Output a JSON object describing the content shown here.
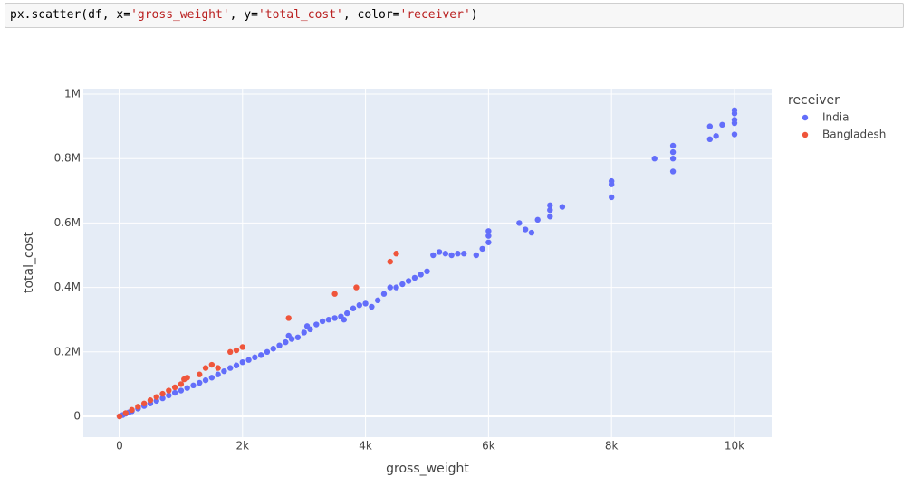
{
  "code": {
    "tokens": [
      "px.scatter(df, x=",
      "'gross_weight'",
      ", y=",
      "'total_cost'",
      ", color=",
      "'receiver'",
      ")"
    ]
  },
  "chart_data": {
    "type": "scatter",
    "x_label": "gross_weight",
    "y_label": "total_cost",
    "legend_title": "receiver",
    "xlim": [
      -589,
      10604
    ],
    "ylim": [
      -64600,
      1016900
    ],
    "xticks": [
      0,
      {
        "value": 2000,
        "label": "2k"
      },
      {
        "value": 4000,
        "label": "4k"
      },
      {
        "value": 6000,
        "label": "6k"
      },
      {
        "value": 8000,
        "label": "8k"
      },
      {
        "value": 10000,
        "label": "10k"
      }
    ],
    "yticks": [
      0,
      {
        "value": 200000,
        "label": "0.2M"
      },
      {
        "value": 400000,
        "label": "0.4M"
      },
      {
        "value": 600000,
        "label": "0.6M"
      },
      {
        "value": 800000,
        "label": "0.8M"
      },
      {
        "value": 1000000,
        "label": "1M"
      }
    ],
    "grid": true,
    "legend": "right",
    "series": [
      {
        "name": "India",
        "color": "#636efa",
        "x": [
          0,
          50,
          100,
          150,
          200,
          300,
          400,
          500,
          600,
          700,
          800,
          900,
          1000,
          1100,
          1200,
          1300,
          1400,
          1500,
          1600,
          1700,
          1800,
          1900,
          2000,
          2100,
          2200,
          2300,
          2400,
          2500,
          2600,
          2700,
          2800,
          2750,
          2900,
          3000,
          3100,
          3050,
          3200,
          3300,
          3400,
          3500,
          3600,
          3700,
          3650,
          3800,
          3900,
          4000,
          4100,
          4200,
          4300,
          4400,
          4500,
          4600,
          4700,
          4800,
          4900,
          5000,
          5100,
          5200,
          5300,
          5400,
          5500,
          5600,
          5800,
          5900,
          6000,
          6000,
          6000,
          6500,
          6600,
          6700,
          6800,
          7000,
          7000,
          7000,
          7200,
          8000,
          8000,
          8000,
          8700,
          9000,
          9000,
          9000,
          9000,
          9600,
          9600,
          9700,
          9800,
          10000,
          10000,
          10000,
          10000,
          10000
        ],
        "values": [
          0,
          4000,
          8000,
          12000,
          16000,
          24000,
          32000,
          40000,
          48000,
          56000,
          65000,
          73000,
          80000,
          88000,
          96000,
          104000,
          112000,
          120000,
          130000,
          140000,
          150000,
          158000,
          168000,
          175000,
          183000,
          190000,
          200000,
          210000,
          220000,
          230000,
          240000,
          250000,
          245000,
          260000,
          270000,
          280000,
          285000,
          295000,
          300000,
          305000,
          310000,
          320000,
          300000,
          335000,
          345000,
          350000,
          340000,
          360000,
          380000,
          400000,
          400000,
          410000,
          420000,
          430000,
          440000,
          450000,
          500000,
          510000,
          505000,
          500000,
          505000,
          505000,
          500000,
          520000,
          540000,
          560000,
          575000,
          600000,
          580000,
          570000,
          610000,
          620000,
          640000,
          655000,
          650000,
          680000,
          720000,
          730000,
          800000,
          760000,
          800000,
          820000,
          840000,
          860000,
          900000,
          870000,
          905000,
          875000,
          910000,
          920000,
          940000,
          950000
        ]
      },
      {
        "name": "Bangladesh",
        "color": "#EF553B",
        "x": [
          0,
          100,
          200,
          300,
          400,
          500,
          600,
          700,
          800,
          900,
          1000,
          1050,
          1100,
          1300,
          1400,
          1500,
          1600,
          1800,
          1900,
          2000,
          2750,
          3500,
          3850,
          4400,
          4500
        ],
        "values": [
          0,
          10000,
          20000,
          30000,
          40000,
          50000,
          60000,
          70000,
          80000,
          90000,
          100000,
          115000,
          120000,
          130000,
          150000,
          160000,
          150000,
          200000,
          205000,
          215000,
          305000,
          380000,
          400000,
          480000,
          505000
        ]
      }
    ]
  }
}
